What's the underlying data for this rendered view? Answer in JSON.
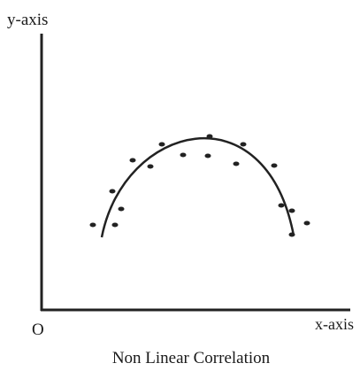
{
  "diagram": {
    "y_axis_label": "y-axis",
    "x_axis_label": "x-axis",
    "origin_label": "O",
    "caption": "Non Linear Correlation"
  }
}
